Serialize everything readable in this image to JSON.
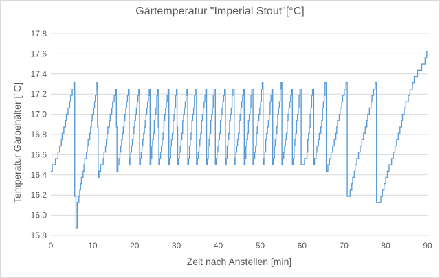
{
  "chart_data": {
    "type": "line",
    "title": "Gärtemperatur \"Imperial Stout\"[°C]",
    "xlabel": "Zeit nach Anstellen [min]",
    "ylabel": "Temperatur Gärbehälter [°C]",
    "xlim": [
      0,
      90
    ],
    "ylim": [
      15.8,
      17.8
    ],
    "x_ticks": [
      0,
      10,
      20,
      30,
      40,
      50,
      60,
      70,
      80,
      90
    ],
    "x_tick_labels": [
      "0",
      "10",
      "20",
      "30",
      "40",
      "50",
      "60",
      "70",
      "80",
      "90"
    ],
    "y_ticks": [
      15.8,
      16.0,
      16.2,
      16.4,
      16.6,
      16.8,
      17.0,
      17.2,
      17.4,
      17.6,
      17.8
    ],
    "y_tick_labels": [
      "15,8",
      "16,0",
      "16,2",
      "16,4",
      "16,6",
      "16,8",
      "17,0",
      "17,2",
      "17,4",
      "17,6",
      "17,8"
    ],
    "grid": "horizontal",
    "line_color": "#5b9bd5",
    "step_interval_min": 0.2,
    "series": [
      {
        "points": [
          [
            0,
            16.44
          ],
          [
            0.5,
            16.5
          ],
          [
            1.5,
            16.56
          ],
          [
            2.5,
            16.75
          ],
          [
            3.5,
            16.94
          ],
          [
            4.5,
            17.13
          ],
          [
            5.5,
            17.31
          ],
          [
            5.7,
            16.2
          ],
          [
            6.0,
            15.87
          ],
          [
            6.3,
            16.1
          ],
          [
            7.5,
            16.4
          ],
          [
            9.5,
            16.86
          ],
          [
            11.0,
            17.31
          ],
          [
            11.3,
            16.38
          ],
          [
            12.5,
            16.56
          ],
          [
            14.0,
            16.94
          ],
          [
            15.5,
            17.25
          ],
          [
            15.8,
            16.44
          ],
          [
            16.5,
            16.6
          ],
          [
            18.5,
            17.25
          ],
          [
            18.7,
            16.5
          ],
          [
            21.0,
            17.25
          ],
          [
            21.2,
            16.5
          ],
          [
            23.5,
            17.25
          ],
          [
            23.7,
            16.5
          ],
          [
            25.5,
            17.25
          ],
          [
            25.8,
            16.5
          ],
          [
            28.0,
            17.25
          ],
          [
            28.2,
            16.5
          ],
          [
            30.0,
            17.25
          ],
          [
            30.3,
            16.5
          ],
          [
            32.5,
            17.25
          ],
          [
            32.7,
            16.5
          ],
          [
            34.5,
            17.25
          ],
          [
            34.8,
            16.5
          ],
          [
            37.0,
            17.25
          ],
          [
            37.2,
            16.5
          ],
          [
            39.0,
            17.25
          ],
          [
            39.3,
            16.5
          ],
          [
            41.5,
            17.25
          ],
          [
            41.7,
            16.5
          ],
          [
            43.5,
            17.25
          ],
          [
            43.8,
            16.5
          ],
          [
            46.0,
            17.25
          ],
          [
            46.2,
            16.5
          ],
          [
            48.0,
            17.25
          ],
          [
            48.3,
            16.5
          ],
          [
            50.5,
            17.3
          ],
          [
            50.7,
            16.5
          ],
          [
            52.8,
            17.25
          ],
          [
            53.0,
            16.5
          ],
          [
            55.0,
            17.3
          ],
          [
            55.2,
            16.5
          ],
          [
            57.5,
            17.25
          ],
          [
            57.7,
            16.5
          ],
          [
            59.5,
            17.25
          ],
          [
            59.8,
            16.5
          ],
          [
            61.0,
            16.56
          ],
          [
            62.5,
            17.25
          ],
          [
            62.8,
            16.5
          ],
          [
            64.5,
            16.88
          ],
          [
            65.5,
            17.3
          ],
          [
            65.8,
            16.44
          ],
          [
            67.5,
            16.69
          ],
          [
            69.5,
            17.13
          ],
          [
            70.5,
            17.31
          ],
          [
            70.8,
            16.2
          ],
          [
            71.3,
            16.2
          ],
          [
            72.5,
            16.44
          ],
          [
            74.5,
            16.75
          ],
          [
            76.5,
            17.13
          ],
          [
            77.5,
            17.31
          ],
          [
            77.8,
            16.12
          ],
          [
            78.5,
            16.12
          ],
          [
            79.0,
            16.19
          ],
          [
            81.0,
            16.5
          ],
          [
            83.0,
            16.81
          ],
          [
            85.0,
            17.13
          ],
          [
            87.0,
            17.38
          ],
          [
            89.0,
            17.5
          ],
          [
            90.0,
            17.62
          ]
        ]
      }
    ]
  }
}
